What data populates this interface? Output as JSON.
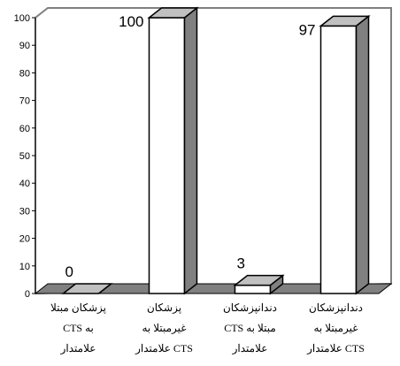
{
  "chart_data": {
    "type": "bar",
    "style": "3d",
    "categories": [
      [
        "پزشکان مبتلا",
        "به CTS",
        "علامتدار"
      ],
      [
        "پزشکان",
        "غیرمبتلا به",
        "CTS علامتدار"
      ],
      [
        "دندانپزشکان",
        "مبتلا به CTS",
        "علامتدار"
      ],
      [
        "دندانپزشکان",
        "غیرمبتلا به",
        "CTS علامتدار"
      ]
    ],
    "values": [
      0,
      100,
      3,
      97
    ],
    "data_labels": [
      "0",
      "100",
      "3",
      "97"
    ],
    "y_ticks": [
      "0",
      "10",
      "20",
      "30",
      "40",
      "50",
      "60",
      "70",
      "80",
      "90",
      "100"
    ],
    "ylim": [
      0,
      100
    ],
    "title": "",
    "xlabel": "",
    "ylabel": "",
    "grid": false,
    "colors": {
      "bar_front": "#ffffff",
      "bar_top": "#c0c0c0",
      "bar_side": "#808080",
      "floor": "#808080",
      "back_wall": "#ffffff",
      "outline": "#000000",
      "back_wall_border": "#808080"
    }
  }
}
